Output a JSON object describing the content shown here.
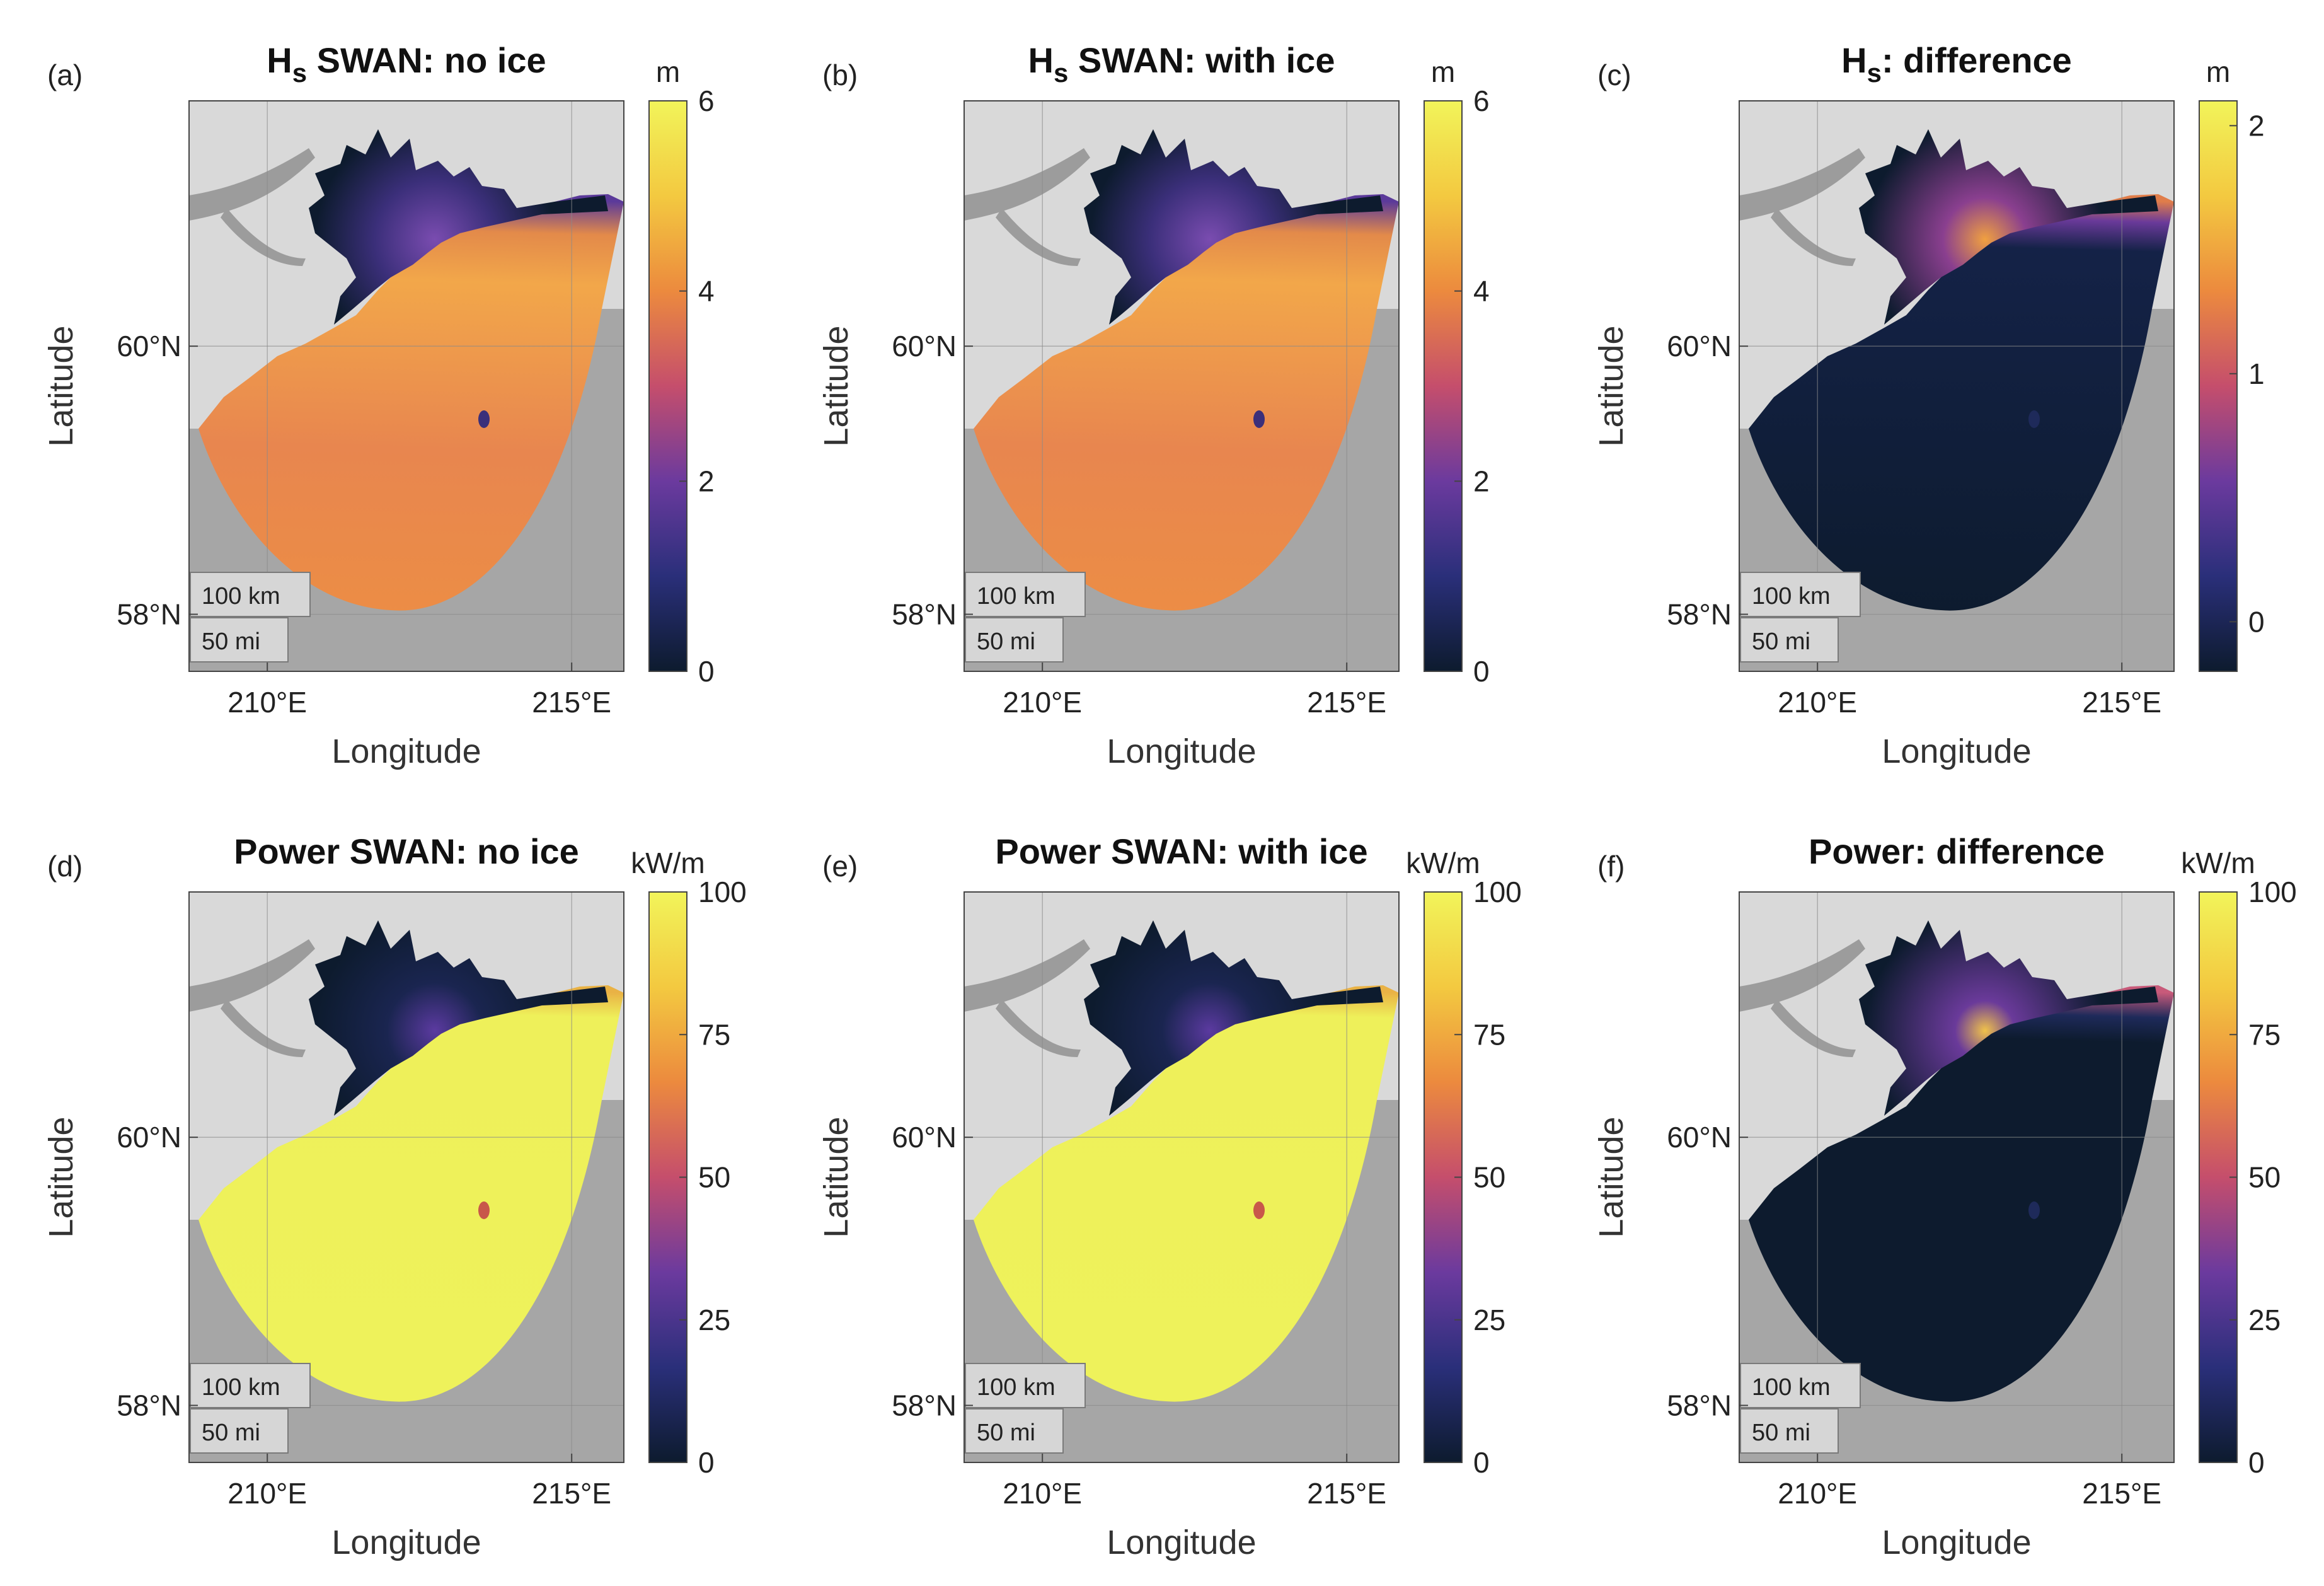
{
  "figure": {
    "panels": [
      {
        "id": "a",
        "letter": "(a)",
        "title_main": "H",
        "title_sub": "s",
        "title_rest": " SWAN: no ice",
        "unit": "m",
        "cmin": 0,
        "cmax": 6,
        "ticks": [
          "0",
          "2",
          "4",
          "6"
        ],
        "tick_vals": [
          0,
          2,
          4,
          6
        ],
        "field": "hs"
      },
      {
        "id": "b",
        "letter": "(b)",
        "title_main": "H",
        "title_sub": "s",
        "title_rest": " SWAN: with ice",
        "unit": "m",
        "cmin": 0,
        "cmax": 6,
        "ticks": [
          "0",
          "2",
          "4",
          "6"
        ],
        "tick_vals": [
          0,
          2,
          4,
          6
        ],
        "field": "hs"
      },
      {
        "id": "c",
        "letter": "(c)",
        "title_main": "H",
        "title_sub": "s",
        "title_rest": ": difference",
        "unit": "m",
        "cmin": -0.2,
        "cmax": 2.1,
        "ticks": [
          "0",
          "1",
          "2"
        ],
        "tick_vals": [
          0,
          1,
          2
        ],
        "field": "hsdiff"
      },
      {
        "id": "d",
        "letter": "(d)",
        "title_main": "Power SWAN: no ice",
        "title_sub": "",
        "title_rest": "",
        "unit": "kW/m",
        "cmin": 0,
        "cmax": 100,
        "ticks": [
          "0",
          "25",
          "50",
          "75",
          "100"
        ],
        "tick_vals": [
          0,
          25,
          50,
          75,
          100
        ],
        "field": "pow"
      },
      {
        "id": "e",
        "letter": "(e)",
        "title_main": "Power SWAN: with ice",
        "title_sub": "",
        "title_rest": "",
        "unit": "kW/m",
        "cmin": 0,
        "cmax": 100,
        "ticks": [
          "0",
          "25",
          "50",
          "75",
          "100"
        ],
        "tick_vals": [
          0,
          25,
          50,
          75,
          100
        ],
        "field": "pow"
      },
      {
        "id": "f",
        "letter": "(f)",
        "title_main": "Power: difference",
        "title_sub": "",
        "title_rest": "",
        "unit": "kW/m",
        "cmin": 0,
        "cmax": 100,
        "ticks": [
          "0",
          "25",
          "50",
          "75",
          "100"
        ],
        "tick_vals": [
          0,
          25,
          50,
          75,
          100
        ],
        "field": "powdiff"
      }
    ],
    "x_ticks": [
      "210°E",
      "215°E"
    ],
    "y_ticks": [
      "58°N",
      "60°N"
    ],
    "xlabel": "Longitude",
    "ylabel": "Latitude",
    "scalebar_km": "100 km",
    "scalebar_mi": "50 mi",
    "colors": {
      "land": "#d9d9d9",
      "outside": "#a6a6a6",
      "ice_land": "#9c9c9c",
      "cmap": [
        "#0d1b2e",
        "#2a2f7a",
        "#6b3a9e",
        "#c54e6c",
        "#ec8a3e",
        "#f3c940",
        "#f2f45a"
      ]
    }
  }
}
